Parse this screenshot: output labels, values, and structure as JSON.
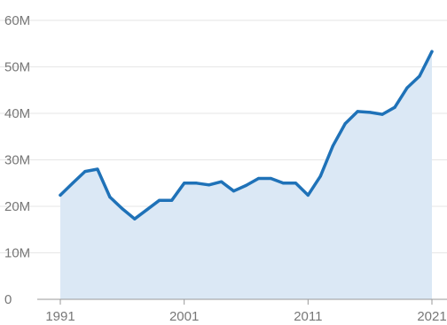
{
  "chart_data": {
    "type": "area",
    "title": "",
    "xlabel": "",
    "ylabel": "",
    "xlim": [
      1991,
      2021
    ],
    "ylim": [
      0,
      60000000
    ],
    "grid": true,
    "y_ticks": [
      {
        "value": 0,
        "label": "0"
      },
      {
        "value": 10000000,
        "label": "10M"
      },
      {
        "value": 20000000,
        "label": "20M"
      },
      {
        "value": 30000000,
        "label": "30M"
      },
      {
        "value": 40000000,
        "label": "40M"
      },
      {
        "value": 50000000,
        "label": "50M"
      },
      {
        "value": 60000000,
        "label": "60M"
      }
    ],
    "x_ticks": [
      {
        "value": 1991,
        "label": "1991"
      },
      {
        "value": 2001,
        "label": "2001"
      },
      {
        "value": 2011,
        "label": "2011"
      },
      {
        "value": 2021,
        "label": "2021"
      }
    ],
    "x": [
      1991,
      1992,
      1993,
      1994,
      1995,
      1996,
      1997,
      1998,
      1999,
      2000,
      2001,
      2002,
      2003,
      2004,
      2005,
      2006,
      2007,
      2008,
      2009,
      2010,
      2011,
      2012,
      2013,
      2014,
      2015,
      2016,
      2017,
      2018,
      2019,
      2020,
      2021
    ],
    "series": [
      {
        "values": [
          22400000,
          25000000,
          27500000,
          28000000,
          22000000,
          19500000,
          17300000,
          19300000,
          21300000,
          21300000,
          25000000,
          25000000,
          24600000,
          25300000,
          23300000,
          24500000,
          26000000,
          26000000,
          25000000,
          25000000,
          22400000,
          26500000,
          33000000,
          37800000,
          40400000,
          40200000,
          39800000,
          41300000,
          45500000,
          48000000,
          53300000
        ]
      }
    ],
    "colors": {
      "line": "#1f72b8",
      "fill": "#dbe8f5",
      "grid": "#e6e6e6",
      "axis": "#9a9a9a",
      "tick_label": "#777777"
    }
  }
}
